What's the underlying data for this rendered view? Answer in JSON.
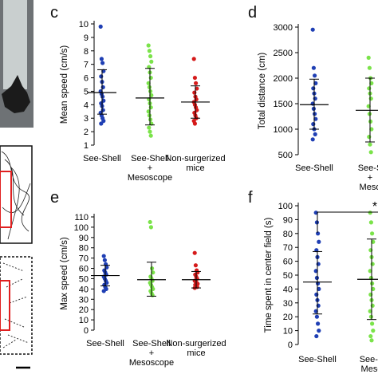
{
  "colors": {
    "see_shell": "#1f3fb4",
    "see_shell_mesoscope": "#7be34a",
    "non_surgerized": "#d51a1a"
  },
  "chart_data": [
    {
      "panel": "c",
      "type": "scatter",
      "ylabel": "Mean speed (cm/s)",
      "ylim": [
        1,
        10
      ],
      "yticks": [
        1,
        2,
        3,
        4,
        5,
        6,
        7,
        8,
        9,
        10
      ],
      "categories": [
        "See-Shell",
        "See-Shell\n+\nMesoscope",
        "Non-surgerized\nmice"
      ],
      "series": [
        {
          "color": "#1f3fb4",
          "mean": 4.9,
          "sd_low": 3.3,
          "sd_high": 6.6,
          "values": [
            9.8,
            7.4,
            7.1,
            6.5,
            6.1,
            5.7,
            5.3,
            5.0,
            4.8,
            4.6,
            4.3,
            4.1,
            3.9,
            3.6,
            3.4,
            3.2,
            3.0,
            2.8,
            2.6
          ]
        },
        {
          "color": "#7be34a",
          "mean": 4.5,
          "sd_low": 2.5,
          "sd_high": 6.7,
          "values": [
            8.4,
            8.0,
            7.6,
            7.2,
            6.8,
            6.4,
            6.0,
            5.6,
            5.3,
            5.0,
            4.7,
            4.4,
            4.1,
            3.8,
            3.5,
            3.2,
            2.9,
            2.6,
            2.3,
            2.0,
            1.7
          ]
        },
        {
          "color": "#d51a1a",
          "mean": 4.2,
          "sd_low": 3.0,
          "sd_high": 5.4,
          "values": [
            7.4,
            6.0,
            5.6,
            5.2,
            4.9,
            4.6,
            4.4,
            4.2,
            4.0,
            3.8,
            3.6,
            3.4,
            3.2,
            3.0,
            2.8,
            2.6
          ]
        }
      ]
    },
    {
      "panel": "d",
      "type": "scatter",
      "ylabel": "Total distance (cm)",
      "ylim": [
        500,
        3000
      ],
      "yticks": [
        500,
        1000,
        1500,
        2000,
        2500,
        3000
      ],
      "categories": [
        "See-Shell",
        "See-S\n+\nMeso"
      ],
      "series": [
        {
          "color": "#1f3fb4",
          "mean": 1480,
          "sd_low": 1000,
          "sd_high": 1980,
          "values": [
            2950,
            2200,
            2050,
            1900,
            1800,
            1700,
            1600,
            1500,
            1400,
            1300,
            1200,
            1100,
            1000,
            900,
            800
          ]
        },
        {
          "color": "#7be34a",
          "mean": 1370,
          "sd_low": 750,
          "sd_high": 2000,
          "values": [
            2400,
            2200,
            2000,
            1900,
            1800,
            1700,
            1600,
            1450,
            1300,
            1150,
            1000,
            850,
            700,
            550
          ]
        }
      ]
    },
    {
      "panel": "e",
      "type": "scatter",
      "ylabel": "Max speed (cm/s)",
      "ylim": [
        0,
        110
      ],
      "yticks": [
        0,
        10,
        20,
        30,
        40,
        50,
        60,
        70,
        80,
        90,
        100,
        110
      ],
      "categories": [
        "See-Shell",
        "See-Shell\n+\nMesoscope",
        "Non-surgerized\nmice"
      ],
      "series": [
        {
          "color": "#1f3fb4",
          "mean": 53,
          "sd_low": 43,
          "sd_high": 63,
          "values": [
            72,
            68,
            64,
            61,
            58,
            56,
            54,
            52,
            50,
            48,
            46,
            44,
            42,
            40,
            38
          ]
        },
        {
          "color": "#7be34a",
          "mean": 49,
          "sd_low": 33,
          "sd_high": 66,
          "values": [
            105,
            100,
            60,
            56,
            52,
            50,
            48,
            46,
            44,
            42,
            40,
            38,
            36,
            34
          ]
        },
        {
          "color": "#d51a1a",
          "mean": 49,
          "sd_low": 41,
          "sd_high": 57,
          "values": [
            75,
            63,
            58,
            56,
            54,
            52,
            50,
            48,
            47,
            46,
            45,
            44,
            43,
            42,
            41
          ]
        }
      ]
    },
    {
      "panel": "f",
      "type": "scatter",
      "ylabel": "Time spent in center field (s)",
      "ylim": [
        0,
        100
      ],
      "yticks": [
        0,
        10,
        20,
        30,
        40,
        50,
        60,
        70,
        80,
        90,
        100
      ],
      "categories": [
        "See-Shell",
        "See-S\nMeso"
      ],
      "significance": "*",
      "series": [
        {
          "color": "#1f3fb4",
          "mean": 45,
          "sd_low": 22,
          "sd_high": 67,
          "values": [
            95,
            88,
            80,
            74,
            68,
            63,
            58,
            53,
            48,
            44,
            40,
            36,
            32,
            28,
            24,
            20,
            15,
            10,
            6
          ]
        },
        {
          "color": "#7be34a",
          "mean": 47,
          "sd_low": 18,
          "sd_high": 76,
          "values": [
            95,
            88,
            80,
            74,
            68,
            63,
            58,
            53,
            48,
            44,
            40,
            36,
            32,
            28,
            24,
            20,
            15,
            10,
            6,
            3
          ]
        }
      ]
    }
  ]
}
